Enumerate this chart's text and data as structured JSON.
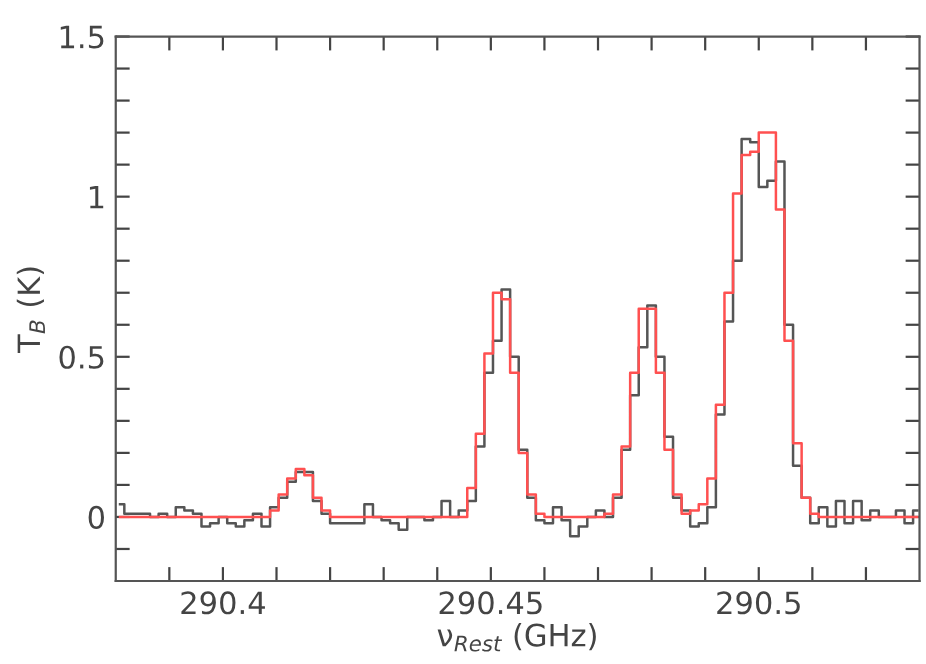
{
  "chart_data": {
    "type": "step",
    "xlabel": "ν$_{Rest}$ (GHz)",
    "ylabel": "T$_{B}$ (K)",
    "x": [
      290.3808,
      290.3824,
      290.384,
      290.3856,
      290.3872,
      290.3888,
      290.3904,
      290.392,
      290.3936,
      290.3952,
      290.3968,
      290.3984,
      290.4,
      290.4016,
      290.4032,
      290.4048,
      290.4064,
      290.408,
      290.4096,
      290.4112,
      290.4128,
      290.4144,
      290.416,
      290.4176,
      290.4192,
      290.4208,
      290.4224,
      290.424,
      290.4256,
      290.4272,
      290.4288,
      290.4304,
      290.432,
      290.4336,
      290.4352,
      290.4368,
      290.4384,
      290.44,
      290.4416,
      290.4432,
      290.4448,
      290.4464,
      290.448,
      290.4496,
      290.4512,
      290.4528,
      290.4544,
      290.456,
      290.4576,
      290.4592,
      290.4608,
      290.4624,
      290.464,
      290.4656,
      290.4672,
      290.4688,
      290.4704,
      290.472,
      290.4736,
      290.4752,
      290.4768,
      290.4784,
      290.48,
      290.4816,
      290.4832,
      290.4848,
      290.4864,
      290.488,
      290.4896,
      290.4912,
      290.4928,
      290.4944,
      290.496,
      290.4976,
      290.4992,
      290.5008,
      290.5024,
      290.504,
      290.5056,
      290.5072,
      290.5088,
      290.5104,
      290.512,
      290.5136,
      290.5152,
      290.5168,
      290.5184,
      290.52,
      290.5216,
      290.5232,
      290.5248,
      290.5264,
      290.528,
      290.5296
    ],
    "series": [
      {
        "color": "#555555",
        "values": [
          0.04,
          0.01,
          0.01,
          0.01,
          0.0,
          0.01,
          0.0,
          0.03,
          0.02,
          0.01,
          -0.03,
          -0.02,
          0.0,
          -0.02,
          -0.03,
          -0.01,
          0.01,
          -0.03,
          0.03,
          0.06,
          0.11,
          0.14,
          0.14,
          0.05,
          0.01,
          -0.02,
          -0.02,
          -0.02,
          -0.02,
          0.04,
          0.0,
          -0.01,
          -0.02,
          -0.04,
          0.0,
          0.0,
          -0.01,
          0.0,
          0.05,
          0.0,
          0.02,
          0.05,
          0.22,
          0.45,
          0.55,
          0.71,
          0.5,
          0.21,
          0.06,
          -0.01,
          -0.02,
          0.03,
          -0.01,
          -0.06,
          -0.03,
          0.0,
          0.02,
          0.0,
          0.06,
          0.21,
          0.38,
          0.53,
          0.66,
          0.5,
          0.25,
          0.06,
          0.02,
          -0.03,
          -0.02,
          0.03,
          0.32,
          0.61,
          0.8,
          1.18,
          1.17,
          1.03,
          1.05,
          1.11,
          0.6,
          0.16,
          0.06,
          -0.02,
          0.03,
          -0.03,
          0.05,
          -0.02,
          0.05,
          -0.01,
          0.02,
          0.0,
          0.0,
          0.02,
          -0.02,
          0.02
        ]
      },
      {
        "color": "#ff5050",
        "values": [
          0,
          0,
          0,
          0,
          0,
          0,
          0,
          0,
          0,
          0,
          0,
          0,
          0,
          0,
          0,
          0,
          0,
          0,
          0.02,
          0.07,
          0.12,
          0.15,
          0.13,
          0.06,
          0.02,
          0,
          0,
          0,
          0,
          0,
          0,
          0,
          0,
          0,
          0,
          0,
          0,
          0,
          0,
          0,
          0,
          0.09,
          0.26,
          0.51,
          0.7,
          0.68,
          0.45,
          0.2,
          0.07,
          0.01,
          0,
          0,
          0,
          0,
          0,
          0,
          0,
          0.01,
          0.07,
          0.22,
          0.45,
          0.65,
          0.65,
          0.45,
          0.21,
          0.07,
          0.01,
          0.02,
          0.04,
          0.12,
          0.35,
          0.7,
          1.01,
          1.13,
          1.14,
          1.2,
          1.2,
          0.96,
          0.55,
          0.23,
          0.06,
          0.01,
          0,
          0,
          0,
          0,
          0,
          0,
          0,
          0,
          0,
          0,
          0,
          0
        ]
      }
    ],
    "xlim": [
      290.38,
      290.53
    ],
    "ylim": [
      -0.2,
      1.5
    ],
    "xticks": [
      {
        "value": 290.39,
        "label": null
      },
      290.4,
      {
        "value": 290.41,
        "label": null
      },
      {
        "value": 290.42,
        "label": null
      },
      {
        "value": 290.43,
        "label": null
      },
      {
        "value": 290.44,
        "label": null
      },
      290.45,
      {
        "value": 290.46,
        "label": null
      },
      {
        "value": 290.47,
        "label": null
      },
      {
        "value": 290.48,
        "label": null
      },
      {
        "value": 290.49,
        "label": null
      },
      290.5,
      {
        "value": 290.51,
        "label": null
      },
      {
        "value": 290.52,
        "label": null
      }
    ],
    "yticks": [
      {
        "value": -0.1,
        "label": null
      },
      0,
      {
        "value": 0.1,
        "label": null
      },
      {
        "value": 0.2,
        "label": null
      },
      {
        "value": 0.3,
        "label": null
      },
      {
        "value": 0.4,
        "label": null
      },
      0.5,
      {
        "value": 0.6,
        "label": null
      },
      {
        "value": 0.7,
        "label": null
      },
      {
        "value": 0.8,
        "label": null
      },
      {
        "value": 0.9,
        "label": null
      },
      1,
      {
        "value": 1.1,
        "label": null
      },
      {
        "value": 1.2,
        "label": null
      },
      {
        "value": 1.3,
        "label": null
      },
      {
        "value": 1.4,
        "label": null
      },
      1.5
    ],
    "grid": false,
    "line_style": "solid"
  }
}
